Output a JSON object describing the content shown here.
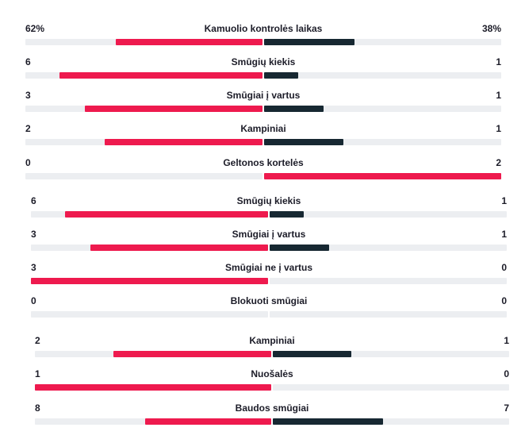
{
  "colors": {
    "strong": "#ee1a4e",
    "weak": "#172832",
    "track": "#eceef1"
  },
  "stats": [
    {
      "name": "Kamuolio kontrolės laikas",
      "home": "62%",
      "away": "38%",
      "home_value": 62,
      "away_value": 38,
      "home_share": 0.62,
      "away_share": 0.38,
      "leader": "home"
    },
    {
      "name": "Smūgių kiekis",
      "home": "6",
      "away": "1",
      "home_value": 6,
      "away_value": 1,
      "home_share": 0.857,
      "away_share": 0.143,
      "leader": "home"
    },
    {
      "name": "Smūgiai į vartus",
      "home": "3",
      "away": "1",
      "home_value": 3,
      "away_value": 1,
      "home_share": 0.75,
      "away_share": 0.25,
      "leader": "home"
    },
    {
      "name": "Kampiniai",
      "home": "2",
      "away": "1",
      "home_value": 2,
      "away_value": 1,
      "home_share": 0.667,
      "away_share": 0.333,
      "leader": "home"
    },
    {
      "name": "Geltonos kortelės",
      "home": "0",
      "away": "2",
      "home_value": 0,
      "away_value": 2,
      "home_share": 0,
      "away_share": 1,
      "leader": "away"
    },
    {
      "name": "Smūgių kiekis",
      "home": "6",
      "away": "1",
      "home_value": 6,
      "away_value": 1,
      "home_share": 0.857,
      "away_share": 0.143,
      "leader": "home"
    },
    {
      "name": "Smūgiai į vartus",
      "home": "3",
      "away": "1",
      "home_value": 3,
      "away_value": 1,
      "home_share": 0.75,
      "away_share": 0.25,
      "leader": "home"
    },
    {
      "name": "Smūgiai ne į vartus",
      "home": "3",
      "away": "0",
      "home_value": 3,
      "away_value": 0,
      "home_share": 1,
      "away_share": 0,
      "leader": "home"
    },
    {
      "name": "Blokuoti smūgiai",
      "home": "0",
      "away": "0",
      "home_value": 0,
      "away_value": 0,
      "home_share": 0,
      "away_share": 0,
      "leader": "none"
    },
    {
      "name": "Kampiniai",
      "home": "2",
      "away": "1",
      "home_value": 2,
      "away_value": 1,
      "home_share": 0.667,
      "away_share": 0.333,
      "leader": "home"
    },
    {
      "name": "Nuošalės",
      "home": "1",
      "away": "0",
      "home_value": 1,
      "away_value": 0,
      "home_share": 1,
      "away_share": 0,
      "leader": "home"
    },
    {
      "name": "Baudos smūgiai",
      "home": "8",
      "away": "7",
      "home_value": 8,
      "away_value": 7,
      "home_share": 0.533,
      "away_share": 0.467,
      "leader": "home"
    }
  ]
}
